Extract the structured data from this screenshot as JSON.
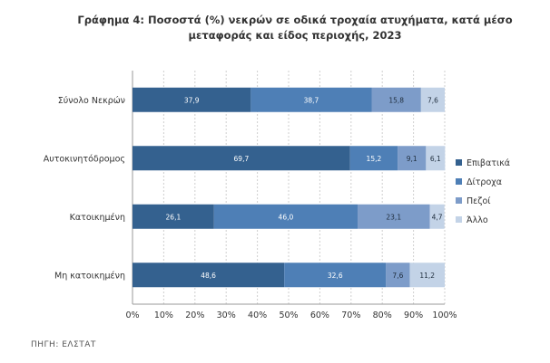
{
  "title": "Γράφημα 4: Ποσοστά (%) νεκρών σε οδικά τροχαία ατυχήματα, κατά μέσο μεταφοράς και είδος περιοχής, 2023",
  "source": "ΠΗΓΗ: ΕΛΣΤΑΤ",
  "chart_data": {
    "type": "bar",
    "orientation": "horizontal",
    "stacked": true,
    "categories": [
      "Σύνολο Νεκρών",
      "Αυτοκινητόδρομος",
      "Κατοικημένη",
      "Μη κατοικημένη"
    ],
    "series": [
      {
        "name": "Επιβατικά",
        "color": "#34618f",
        "values": [
          37.9,
          69.7,
          26.1,
          48.6
        ],
        "labels": [
          "37,9",
          "69,7",
          "26,1",
          "48,6"
        ]
      },
      {
        "name": "Δίτροχα",
        "color": "#4e7fb6",
        "values": [
          38.7,
          15.2,
          46.0,
          32.6
        ],
        "labels": [
          "38,7",
          "15,2",
          "46,0",
          "32,6"
        ]
      },
      {
        "name": "Πεζοί",
        "color": "#7d9cc9",
        "values": [
          15.8,
          9.1,
          23.1,
          7.6
        ],
        "labels": [
          "15,8",
          "9,1",
          "23,1",
          "7,6"
        ]
      },
      {
        "name": "Άλλο",
        "color": "#c3d3e7",
        "values": [
          7.6,
          6.1,
          4.7,
          11.2
        ],
        "labels": [
          "7,6",
          "6,1",
          "4,7",
          "11,2"
        ]
      }
    ],
    "xlim": [
      0,
      100
    ],
    "xticks": [
      "0%",
      "10%",
      "20%",
      "30%",
      "40%",
      "50%",
      "60%",
      "70%",
      "80%",
      "90%",
      "100%"
    ],
    "grid": true,
    "legend_position": "right"
  }
}
